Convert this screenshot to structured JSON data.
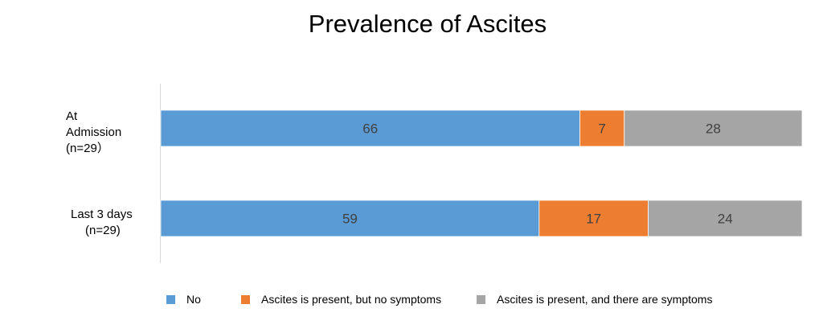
{
  "chart_data": {
    "type": "bar",
    "orientation": "horizontal",
    "stacked": true,
    "title": "Prevalence of Ascites",
    "categories": [
      {
        "line1": "At",
        "line2": "Admission",
        "line3": "(n=29）"
      },
      {
        "line1": "Last 3 days",
        "line2": "(n=29)"
      }
    ],
    "series": [
      {
        "name": "No",
        "values": [
          66,
          59
        ],
        "color": "#5b9bd5"
      },
      {
        "name": "Ascites is present, but no symptoms",
        "values": [
          7,
          17
        ],
        "color": "#ed7d31"
      },
      {
        "name": "Ascites is present, and there are symptoms",
        "values": [
          28,
          24
        ],
        "color": "#a5a5a5"
      }
    ],
    "data_labels": true,
    "grid": false,
    "legend_position": "bottom"
  }
}
